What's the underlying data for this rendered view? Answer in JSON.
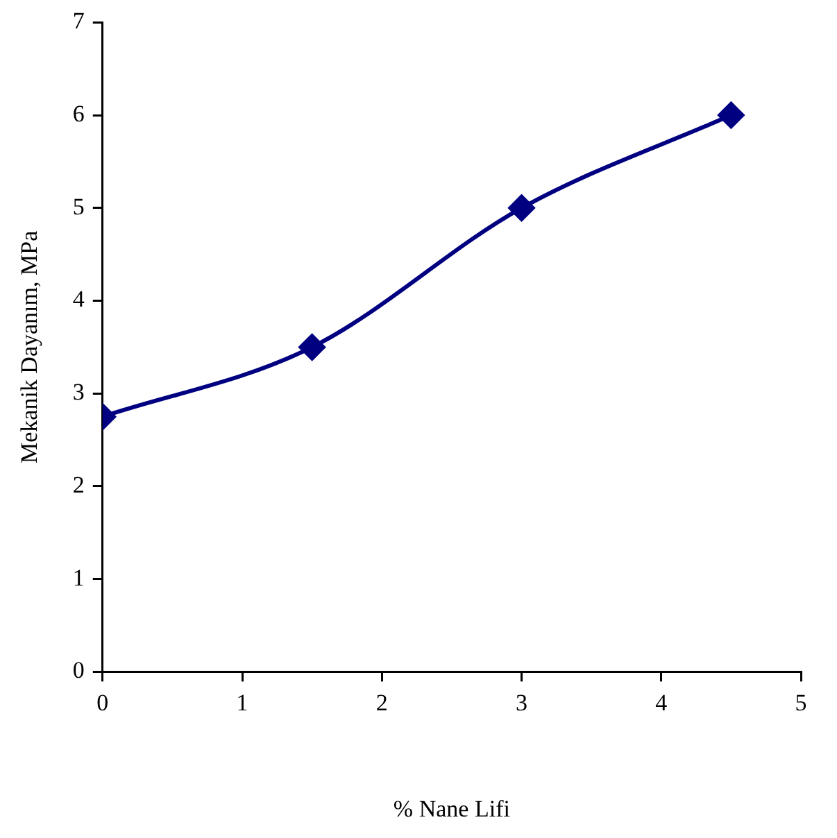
{
  "chart_data": {
    "type": "line",
    "xlabel": "% Nane Lifi",
    "ylabel": "Mekanik Dayanım, MPa",
    "x": [
      0,
      1.5,
      3,
      4.5
    ],
    "series": [
      {
        "color": "#000080",
        "values": [
          2.75,
          3.5,
          5,
          6
        ]
      }
    ],
    "xlim": [
      0,
      5
    ],
    "xticks": [
      0,
      1,
      2,
      3,
      4,
      5
    ],
    "ylim": [
      0,
      7
    ],
    "yticks": [
      0,
      1,
      2,
      3,
      4,
      5,
      6,
      7
    ],
    "grid": false,
    "legend": false,
    "marker": "diamond",
    "line_style": "solid"
  }
}
